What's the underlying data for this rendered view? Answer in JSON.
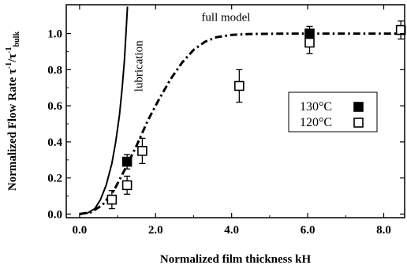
{
  "chart_data": {
    "type": "scatter",
    "xlabel": "Normalized film thickness kH",
    "ylabel": {
      "main": "Normalized Flow Rate τ",
      "sup1": "-1",
      "mid": "/τ",
      "sup2": "-1",
      "sub": "bulk"
    },
    "xlim": [
      -0.35,
      8.55
    ],
    "ylim": [
      -0.02,
      1.16
    ],
    "x_ticks": [
      {
        "value": 0,
        "label": "0.0"
      },
      {
        "value": 2,
        "label": "2.0"
      },
      {
        "value": 4,
        "label": "4.0"
      },
      {
        "value": 6,
        "label": "6.0"
      },
      {
        "value": 8,
        "label": "8.0"
      }
    ],
    "y_ticks": [
      {
        "value": 0,
        "label": "0.0"
      },
      {
        "value": 0.2,
        "label": "0.2"
      },
      {
        "value": 0.4,
        "label": "0.4"
      },
      {
        "value": 0.6,
        "label": "0.6"
      },
      {
        "value": 0.8,
        "label": "0.8"
      },
      {
        "value": 1.0,
        "label": "1.0"
      }
    ],
    "series": [
      {
        "name": "130°C",
        "marker": "filled-square",
        "color": "#000000",
        "points": [
          {
            "x": 1.25,
            "y": 0.29,
            "err": 0.04
          },
          {
            "x": 6.05,
            "y": 1.0,
            "err": 0.04
          }
        ]
      },
      {
        "name": "120°C",
        "marker": "open-square",
        "color": "#000000",
        "points": [
          {
            "x": 0.85,
            "y": 0.08,
            "err": 0.05
          },
          {
            "x": 1.25,
            "y": 0.16,
            "err": 0.05
          },
          {
            "x": 1.65,
            "y": 0.35,
            "err": 0.07
          },
          {
            "x": 4.2,
            "y": 0.71,
            "err": 0.09
          },
          {
            "x": 6.05,
            "y": 0.95,
            "err": 0.06
          },
          {
            "x": 8.45,
            "y": 1.02,
            "err": 0.05
          }
        ]
      }
    ],
    "curves": [
      {
        "name": "lubrication",
        "style": "solid",
        "points": [
          [
            0,
            0
          ],
          [
            0.2,
            0.005
          ],
          [
            0.4,
            0.03
          ],
          [
            0.55,
            0.08
          ],
          [
            0.7,
            0.16
          ],
          [
            0.85,
            0.28
          ],
          [
            0.95,
            0.4
          ],
          [
            1.05,
            0.55
          ],
          [
            1.12,
            0.7
          ],
          [
            1.18,
            0.85
          ],
          [
            1.22,
            1.0
          ],
          [
            1.26,
            1.15
          ]
        ]
      },
      {
        "name": "full model",
        "style": "dash-dot",
        "points": [
          [
            0,
            0
          ],
          [
            0.3,
            0.01
          ],
          [
            0.6,
            0.05
          ],
          [
            0.9,
            0.13
          ],
          [
            1.2,
            0.25
          ],
          [
            1.5,
            0.38
          ],
          [
            1.8,
            0.52
          ],
          [
            2.1,
            0.64
          ],
          [
            2.4,
            0.75
          ],
          [
            2.7,
            0.84
          ],
          [
            3.0,
            0.91
          ],
          [
            3.3,
            0.955
          ],
          [
            3.6,
            0.98
          ],
          [
            4.0,
            0.993
          ],
          [
            4.5,
            0.998
          ],
          [
            5.5,
            1.0
          ],
          [
            8.55,
            1.0
          ]
        ]
      }
    ],
    "annotations": [
      {
        "text": "lubrication",
        "x": 1.65,
        "y": 0.82,
        "rotation": -90
      },
      {
        "text": "full model",
        "x": 3.85,
        "y": 1.07,
        "rotation": 0
      }
    ],
    "legend": {
      "position": "right",
      "entries": [
        {
          "label": "130°C",
          "marker": "filled-square"
        },
        {
          "label": "120°C",
          "marker": "open-square"
        }
      ]
    },
    "grid": false
  }
}
